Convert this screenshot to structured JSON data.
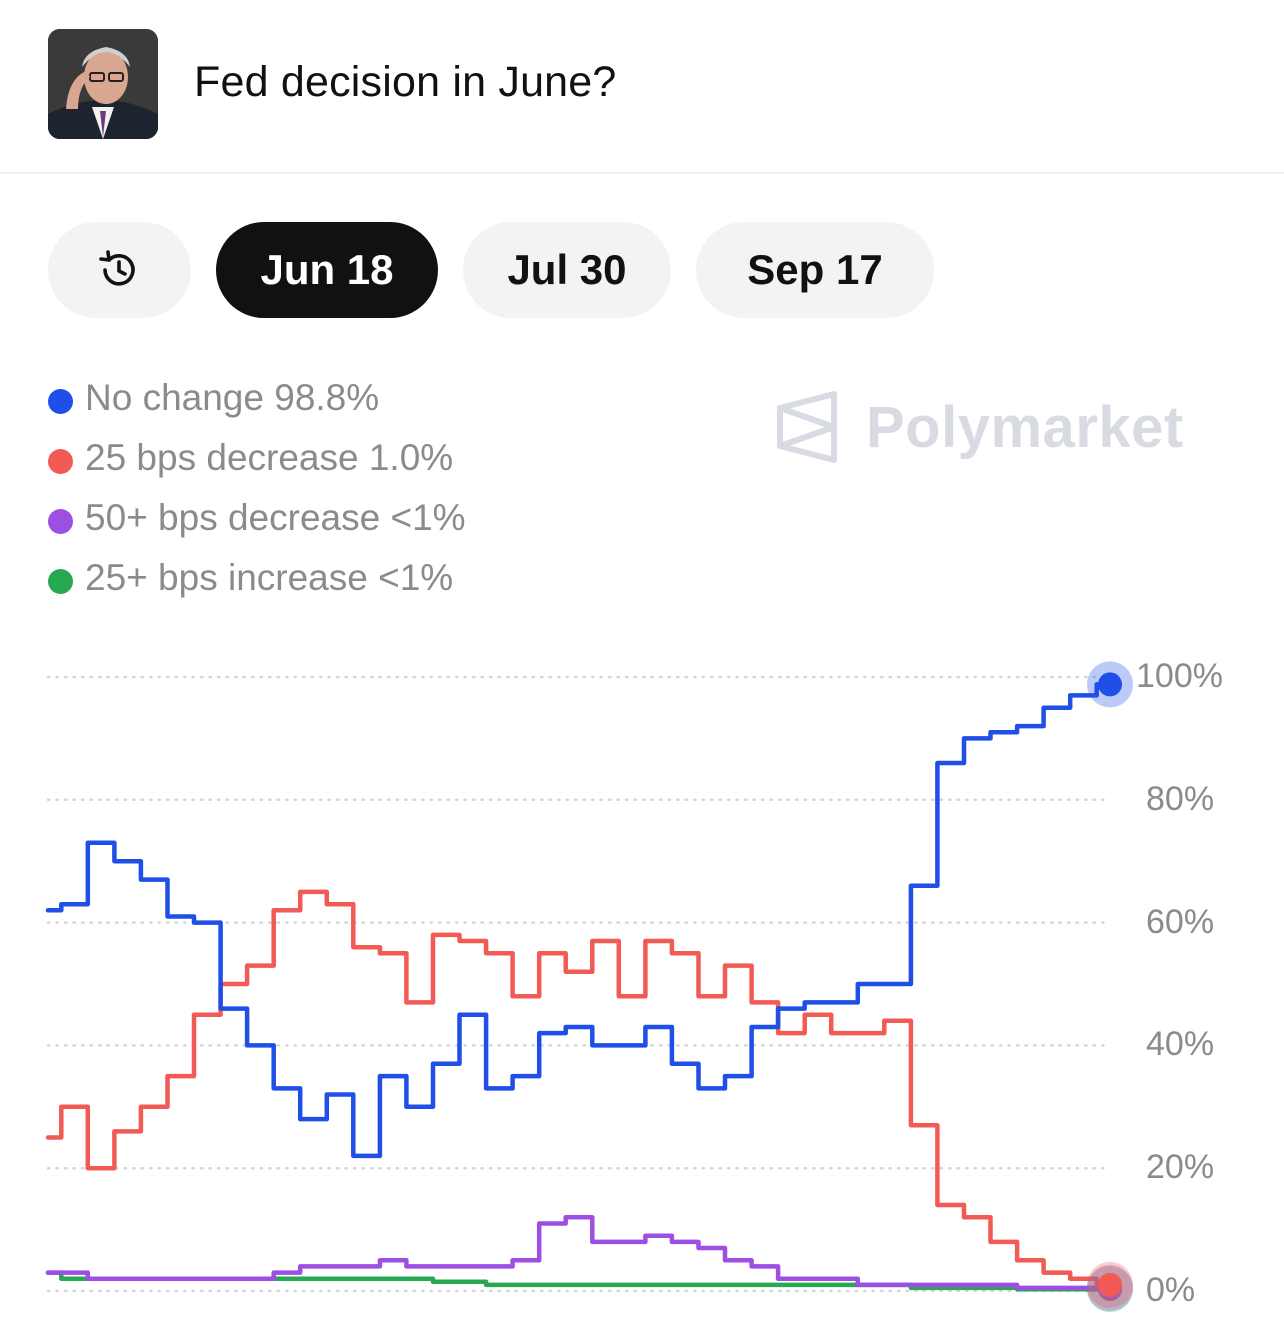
{
  "header": {
    "title": "Fed decision in June?",
    "avatar_icon": "portrait-image"
  },
  "tabs": [
    {
      "icon": "history-icon",
      "label": ""
    },
    {
      "label": "Jun 18",
      "active": true
    },
    {
      "label": "Jul 30"
    },
    {
      "label": "Sep 17"
    }
  ],
  "watermark": "Polymarket",
  "colors": {
    "no_change": "#1f4fe6",
    "decrease_25": "#f25a55",
    "decrease_50": "#9d4ee3",
    "increase_25": "#27a852"
  },
  "legend": [
    {
      "label": "No change 98.8%",
      "color": "#1f4fe6"
    },
    {
      "label": "25 bps decrease 1.0%",
      "color": "#f25a55"
    },
    {
      "label": "50+ bps decrease <1%",
      "color": "#9d4ee3"
    },
    {
      "label": "25+ bps increase <1%",
      "color": "#27a852"
    }
  ],
  "chart_data": {
    "type": "line",
    "ylim": [
      0,
      100
    ],
    "yticks": [
      "100%",
      "80%",
      "60%",
      "40%",
      "20%",
      "0%"
    ],
    "ytick_values": [
      100,
      80,
      60,
      40,
      20,
      0
    ],
    "grid": true,
    "grid_style": "dotted",
    "x_points": 41,
    "series": [
      {
        "name": "No change",
        "color": "#1f4fe6",
        "values": [
          62,
          63,
          73,
          70,
          67,
          61,
          60,
          46,
          40,
          33,
          28,
          32,
          22,
          35,
          30,
          37,
          45,
          33,
          35,
          42,
          43,
          40,
          40,
          43,
          37,
          33,
          35,
          43,
          46,
          47,
          47,
          50,
          50,
          66,
          86,
          90,
          91,
          92,
          95,
          97,
          98.8
        ]
      },
      {
        "name": "25 bps decrease",
        "color": "#f25a55",
        "values": [
          25,
          30,
          20,
          26,
          30,
          35,
          45,
          50,
          53,
          62,
          65,
          63,
          56,
          55,
          47,
          58,
          57,
          55,
          48,
          55,
          52,
          57,
          48,
          57,
          55,
          48,
          53,
          47,
          42,
          45,
          42,
          42,
          44,
          27,
          14,
          12,
          8,
          5,
          3,
          2,
          1.0
        ]
      },
      {
        "name": "50+ bps decrease",
        "color": "#9d4ee3",
        "values": [
          3,
          3,
          2,
          2,
          2,
          2,
          2,
          2,
          2,
          3,
          4,
          4,
          4,
          5,
          4,
          4,
          4,
          4,
          5,
          11,
          12,
          8,
          8,
          9,
          8,
          7,
          5,
          4,
          2,
          2,
          2,
          1,
          1,
          1,
          1,
          1,
          1,
          0.5,
          0.5,
          0.5,
          0.5
        ]
      },
      {
        "name": "25+ bps increase",
        "color": "#27a852",
        "values": [
          3,
          2,
          2,
          2,
          2,
          2,
          2,
          2,
          2,
          2,
          2,
          2,
          2,
          2,
          2,
          1.5,
          1.5,
          1,
          1,
          1,
          1,
          1,
          1,
          1,
          1,
          1,
          1,
          1,
          1,
          1,
          1,
          1,
          1,
          0.5,
          0.5,
          0.5,
          0.5,
          0.3,
          0.3,
          0.3,
          0.3
        ]
      }
    ]
  }
}
